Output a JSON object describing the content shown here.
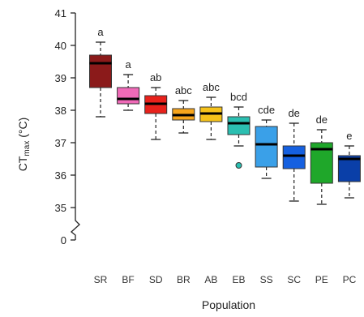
{
  "chart_data": {
    "type": "box",
    "xlabel": "Population",
    "ylabel": {
      "main": "CT",
      "sub": "max",
      "unit": " (°C)"
    },
    "ylim": [
      34.8,
      41
    ],
    "y_axis_break": true,
    "y_break_value": 0,
    "y_ticks": [
      35,
      36,
      37,
      38,
      39,
      40,
      41
    ],
    "y_tick_labels": [
      "35",
      "36",
      "37",
      "38",
      "39",
      "40",
      "41"
    ],
    "y_break_tick_label": "0",
    "categories": [
      "SR",
      "BF",
      "SD",
      "BR",
      "AB",
      "EB",
      "SS",
      "SC",
      "PE",
      "PC"
    ],
    "letters": [
      "a",
      "a",
      "ab",
      "abc",
      "abc",
      "bcd",
      "cde",
      "de",
      "de",
      "e"
    ],
    "colors": [
      "#8b1a1a",
      "#f06ab8",
      "#e8211b",
      "#f7a51c",
      "#f5c21a",
      "#2bbfb1",
      "#3aa0e8",
      "#1560e0",
      "#1fa72a",
      "#0a3fa8"
    ],
    "boxes": [
      {
        "min": 37.8,
        "q1": 38.7,
        "median": 39.45,
        "q3": 39.7,
        "max": 40.1,
        "outliers": []
      },
      {
        "min": 38.0,
        "q1": 38.2,
        "median": 38.35,
        "q3": 38.7,
        "max": 39.1,
        "outliers": []
      },
      {
        "min": 37.1,
        "q1": 37.9,
        "median": 38.2,
        "q3": 38.45,
        "max": 38.7,
        "outliers": []
      },
      {
        "min": 37.3,
        "q1": 37.7,
        "median": 37.85,
        "q3": 38.05,
        "max": 38.3,
        "outliers": []
      },
      {
        "min": 37.1,
        "q1": 37.65,
        "median": 37.9,
        "q3": 38.1,
        "max": 38.4,
        "outliers": []
      },
      {
        "min": 36.9,
        "q1": 37.25,
        "median": 37.6,
        "q3": 37.8,
        "max": 38.1,
        "outliers": [
          36.3
        ]
      },
      {
        "min": 35.9,
        "q1": 36.25,
        "median": 36.95,
        "q3": 37.5,
        "max": 37.7,
        "outliers": []
      },
      {
        "min": 35.2,
        "q1": 36.2,
        "median": 36.6,
        "q3": 36.9,
        "max": 37.6,
        "outliers": []
      },
      {
        "min": 35.1,
        "q1": 35.75,
        "median": 36.8,
        "q3": 37.0,
        "max": 37.4,
        "outliers": []
      },
      {
        "min": 35.3,
        "q1": 35.8,
        "median": 36.5,
        "q3": 36.6,
        "max": 36.9,
        "outliers": []
      }
    ]
  }
}
